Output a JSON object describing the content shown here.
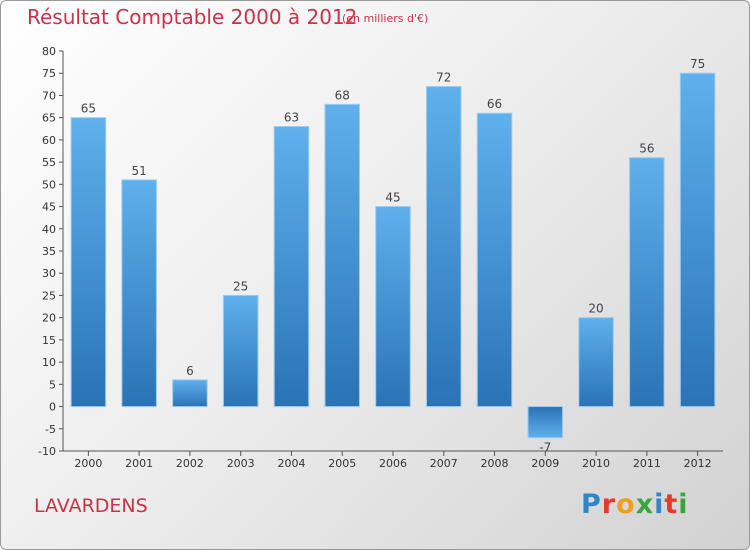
{
  "chart_data": {
    "type": "bar",
    "title": "Résultat Comptable 2000 à 2012",
    "subtitle": "(en milliers d'€)",
    "categories": [
      "2000",
      "2001",
      "2002",
      "2003",
      "2004",
      "2005",
      "2006",
      "2007",
      "2008",
      "2009",
      "2010",
      "2011",
      "2012"
    ],
    "values": [
      65,
      51,
      6,
      25,
      63,
      68,
      45,
      72,
      66,
      -7,
      20,
      56,
      75
    ],
    "data_labels": [
      "65",
      "51",
      "6",
      "25",
      "63",
      "68",
      "45",
      "72",
      "66",
      "-7",
      "20",
      "56",
      "75"
    ],
    "ylim": [
      -10,
      80
    ],
    "yticks": [
      -10,
      -5,
      0,
      5,
      10,
      15,
      20,
      25,
      30,
      35,
      40,
      45,
      50,
      55,
      60,
      65,
      70,
      75,
      80
    ],
    "ytick_labels": [
      "-10",
      "-5",
      "0",
      "5",
      "10",
      "15",
      "20",
      "25",
      "30",
      "35",
      "40",
      "45",
      "50",
      "55",
      "60",
      "65",
      "70",
      "75",
      "80"
    ],
    "xlabel": "",
    "ylabel": "",
    "grid": false,
    "bar_color": "#3f93d6",
    "bar_color_light": "#5fb0ec",
    "bar_color_dark": "#2a73b6"
  },
  "town_name": "LAVARDENS",
  "logo": {
    "text": "Proxiti",
    "letters": [
      "P",
      "r",
      "o",
      "x",
      "i",
      "t",
      "i"
    ],
    "colors": [
      "#2e86c8",
      "#e8392b",
      "#f0a020",
      "#3aa63a",
      "#2e86c8",
      "#e8392b",
      "#3aa63a"
    ]
  },
  "colors": {
    "title": "#c8324b",
    "axis": "#555555"
  }
}
